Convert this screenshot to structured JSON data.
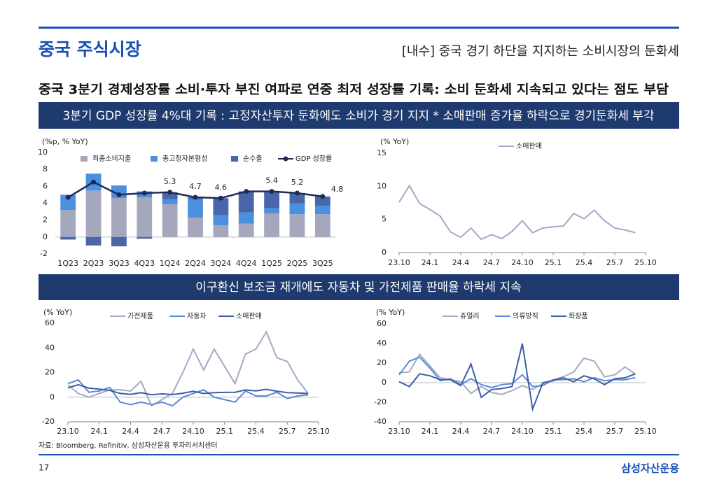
{
  "header": {
    "title": "중국 주식시장",
    "subtitle": "[내수] 중국 경기 하단을 지지하는 소비시장의 둔화세",
    "headline": "중국 3분기 경제성장률 소비·투자 부진 여파로 연중 최저 성장률 기록: 소비 둔화세 지속되고 있다는 점도 부담"
  },
  "banners": [
    "3분기 GDP 성장률 4%대 기록 : 고정자산투자 둔화에도 소비가 경기 지지 * 소매판매 증가율 하락으로 경기둔화세 부각",
    "이구환신 보조금 재개에도 자동차 및 가전제품 판매율 하락세 지속"
  ],
  "chart_data": [
    {
      "type": "bar",
      "stacked": true,
      "legend": "top",
      "y_label": "(%p, % YoY)",
      "categories": [
        "1Q23",
        "2Q23",
        "3Q23",
        "4Q23",
        "1Q24",
        "2Q24",
        "3Q24",
        "4Q24",
        "1Q25",
        "2Q25",
        "3Q25"
      ],
      "series": [
        {
          "name": "최종소비지출",
          "color": "#a5a8bd",
          "values": [
            3.2,
            5.5,
            4.6,
            4.7,
            3.9,
            2.3,
            1.4,
            1.6,
            2.8,
            2.7,
            2.7
          ]
        },
        {
          "name": "총고정자본형성",
          "color": "#4a8fe0",
          "values": [
            1.8,
            2.0,
            1.5,
            0.7,
            0.6,
            2.2,
            1.2,
            1.3,
            0.6,
            1.3,
            1.0
          ]
        },
        {
          "name": "순수출",
          "color": "#4767aa",
          "values": [
            -0.3,
            -1.0,
            -1.1,
            -0.2,
            0.8,
            0.2,
            2.0,
            2.5,
            2.0,
            1.2,
            1.1
          ]
        },
        {
          "name": "GDP 성장률",
          "type": "line",
          "color": "#1e2b55",
          "values": [
            4.7,
            6.5,
            5.0,
            5.2,
            5.3,
            4.7,
            4.6,
            5.4,
            5.4,
            5.2,
            4.8
          ],
          "value_labels": [
            null,
            null,
            null,
            null,
            5.3,
            4.7,
            4.6,
            null,
            5.4,
            5.2,
            4.8
          ]
        }
      ],
      "ylim": [
        -2,
        10
      ],
      "yticks": [
        -2,
        0,
        2,
        4,
        6,
        8,
        10
      ]
    },
    {
      "type": "line",
      "legend": "top",
      "y_label": "(% YoY)",
      "x": [
        "23.10",
        "23.11",
        "23.12",
        "24.1",
        "24.2",
        "24.3",
        "24.4",
        "24.5",
        "24.6",
        "24.7",
        "24.8",
        "24.9",
        "24.10",
        "24.11",
        "24.12",
        "25.1",
        "25.2",
        "25.3",
        "25.4",
        "25.5",
        "25.6",
        "25.7",
        "25.8",
        "25.9"
      ],
      "series": [
        {
          "name": "소매판매",
          "color": "#a3aac4",
          "values": [
            7.6,
            10.1,
            7.4,
            6.5,
            5.5,
            3.1,
            2.3,
            3.7,
            2.0,
            2.7,
            2.1,
            3.2,
            4.8,
            3.0,
            3.7,
            3.9,
            4.0,
            5.9,
            5.1,
            6.4,
            4.8,
            3.7,
            3.4,
            3.0
          ]
        }
      ],
      "xticks": [
        "23.10",
        "24.1",
        "24.4",
        "24.7",
        "24.10",
        "25.1",
        "25.4",
        "25.7",
        "25.10"
      ],
      "ylim": [
        0,
        15
      ],
      "yticks": [
        0,
        5,
        10,
        15
      ]
    },
    {
      "type": "line",
      "legend": "top",
      "y_label": "(% YoY)",
      "x": [
        "23.10",
        "23.11",
        "23.12",
        "24.1",
        "24.2",
        "24.3",
        "24.4",
        "24.5",
        "24.6",
        "24.7",
        "24.8",
        "24.9",
        "24.10",
        "24.11",
        "24.12",
        "25.1",
        "25.2",
        "25.3",
        "25.4",
        "25.5",
        "25.6",
        "25.7",
        "25.8",
        "25.9"
      ],
      "series": [
        {
          "name": "가전제품",
          "color": "#a3aac4",
          "values": [
            10,
            3,
            0,
            3,
            6,
            6,
            5,
            13,
            -7,
            -2,
            3,
            20,
            39,
            22,
            39,
            25,
            11,
            35,
            39,
            53,
            32,
            29,
            14,
            3
          ]
        },
        {
          "name": "자동차",
          "color": "#5b8ad6",
          "values": [
            11,
            14,
            4,
            5,
            8,
            -4,
            -6,
            -4,
            -6,
            -4,
            -7,
            0,
            3,
            6,
            0,
            -2,
            -4,
            5,
            1,
            1,
            4,
            -1,
            1,
            2
          ]
        },
        {
          "name": "소매판매",
          "color": "#3d5ea6",
          "values": [
            7.6,
            10.1,
            7.4,
            6.5,
            5.5,
            3.1,
            2.3,
            3.7,
            2.0,
            2.7,
            2.1,
            3.2,
            4.8,
            3.0,
            3.7,
            3.9,
            4.0,
            5.9,
            5.1,
            6.4,
            4.8,
            3.7,
            3.4,
            3.0
          ]
        }
      ],
      "xticks": [
        "23.10",
        "24.1",
        "24.4",
        "24.7",
        "24.10",
        "25.1",
        "25.4",
        "25.7",
        "25.10"
      ],
      "ylim": [
        -20,
        60
      ],
      "yticks": [
        -20,
        0,
        20,
        40,
        60
      ]
    },
    {
      "type": "line",
      "legend": "top",
      "y_label": "(% YoY)",
      "x": [
        "23.10",
        "23.11",
        "23.12",
        "24.1",
        "24.2",
        "24.3",
        "24.4",
        "24.5",
        "24.6",
        "24.7",
        "24.8",
        "24.9",
        "24.10",
        "24.11",
        "24.12",
        "25.1",
        "25.2",
        "25.3",
        "25.4",
        "25.5",
        "25.6",
        "25.7",
        "25.8",
        "25.9"
      ],
      "series": [
        {
          "name": "쥬얼리",
          "color": "#a3aac4",
          "values": [
            10,
            11,
            29,
            17,
            5,
            3,
            1,
            -11,
            -4,
            -10,
            -12,
            -8,
            -3,
            -7,
            -1,
            3,
            6,
            11,
            25,
            22,
            6,
            8,
            16,
            9
          ]
        },
        {
          "name": "의류방직",
          "color": "#5b8ad6",
          "values": [
            8,
            22,
            26,
            15,
            2,
            4,
            -2,
            4,
            -2,
            -5,
            -2,
            -1,
            8,
            -4,
            -3,
            3,
            3,
            4,
            1,
            5,
            2,
            3,
            3,
            5
          ]
        },
        {
          "name": "화장품",
          "color": "#3d5ea6",
          "values": [
            1,
            -4,
            9,
            7,
            3,
            3,
            -3,
            19,
            -15,
            -7,
            -6,
            -4,
            40,
            -27,
            0,
            2,
            5,
            1,
            7,
            4,
            -2,
            4,
            5,
            9
          ]
        }
      ],
      "xticks": [
        "23.10",
        "24.1",
        "24.4",
        "24.7",
        "24.10",
        "25.1",
        "25.4",
        "25.7",
        "25.10"
      ],
      "ylim": [
        -40,
        60
      ],
      "yticks": [
        -40,
        -20,
        0,
        20,
        40,
        60
      ]
    }
  ],
  "footer": {
    "source": "자료: Bloomberg, Refinitiv, 삼성자산운용 투자리서치센터",
    "page": "17",
    "logo": "삼성자산운용"
  }
}
